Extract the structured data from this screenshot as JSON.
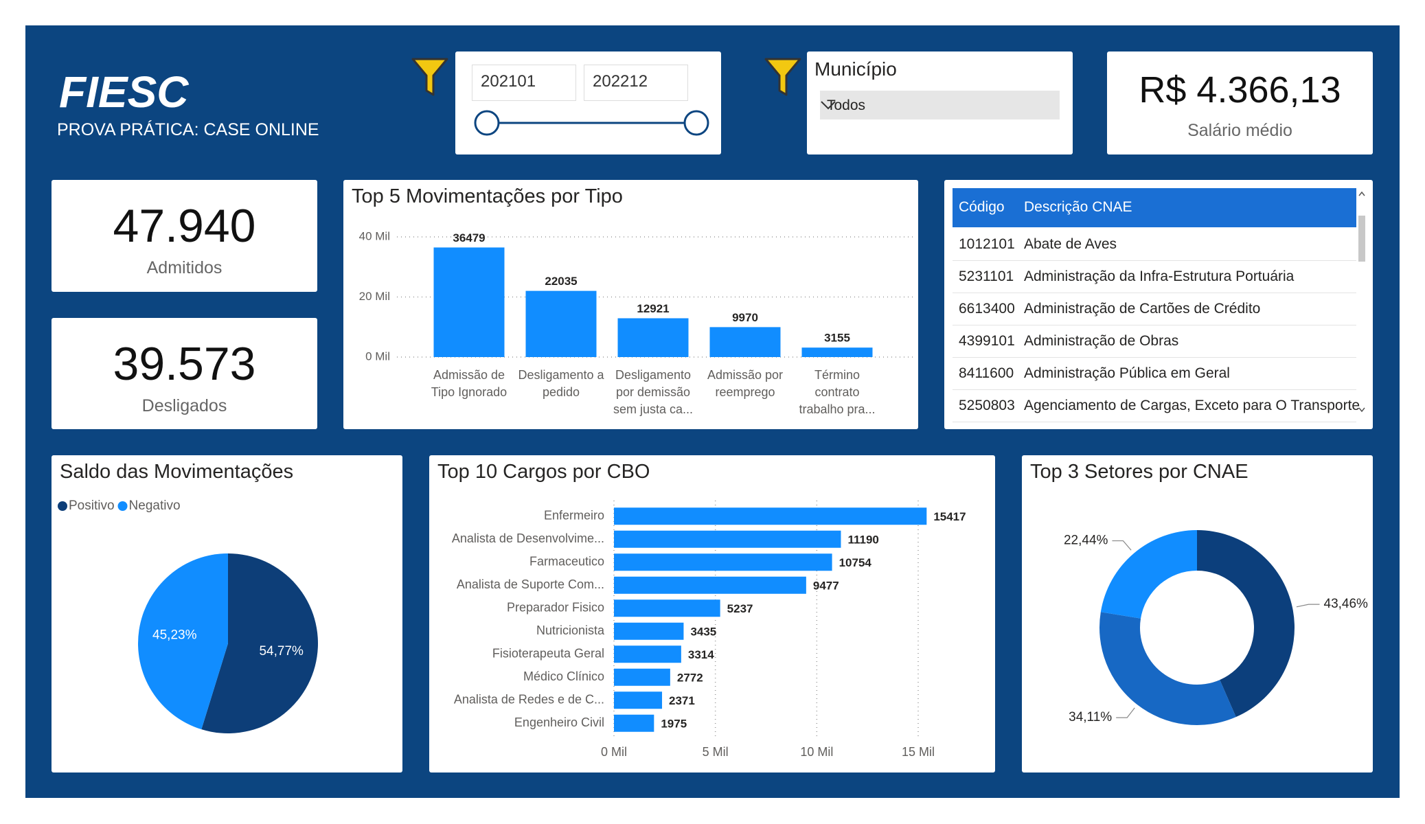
{
  "header": {
    "title": "FIESC",
    "subtitle": "PROVA PRÁTICA: CASE ONLINE"
  },
  "date_filter": {
    "start": "202101",
    "end": "202212"
  },
  "municipio_filter": {
    "label": "Município",
    "value": "Todos"
  },
  "kpis": [
    {
      "value": "R$ 4.366,13",
      "label": "Salário médio"
    },
    {
      "value": "47.940",
      "label": "Admitidos"
    },
    {
      "value": "39.573",
      "label": "Desligados"
    }
  ],
  "table": {
    "columns": [
      "Código",
      "Descrição CNAE"
    ],
    "rows": [
      [
        "1012101",
        "Abate de Aves"
      ],
      [
        "5231101",
        "Administração da Infra-Estrutura Portuária"
      ],
      [
        "6613400",
        "Administração de Cartões de Crédito"
      ],
      [
        "4399101",
        "Administração de Obras"
      ],
      [
        "8411600",
        "Administração Pública em Geral"
      ],
      [
        "5250803",
        "Agenciamento de Cargas, Exceto para O Transporte Marítimo"
      ]
    ]
  },
  "chart_data": [
    {
      "type": "bar",
      "title": "Top 5 Movimentações por Tipo",
      "categories": [
        "Admissão de Tipo Ignorado",
        "Desligamento a pedido",
        "Desligamento por demissão sem justa ca...",
        "Admissão por reemprego",
        "Término contrato trabalho pra..."
      ],
      "values": [
        36479,
        22035,
        12921,
        9970,
        3155
      ],
      "color": "#118dff",
      "ylim": [
        0,
        40000
      ],
      "yticks": [
        {
          "value": 0,
          "label": "0 Mil"
        },
        {
          "value": 20000,
          "label": "20 Mil"
        },
        {
          "value": 40000,
          "label": "40 Mil"
        }
      ],
      "grid": true
    },
    {
      "type": "hbar",
      "title": "Top 10 Cargos por CBO",
      "categories": [
        "Enfermeiro",
        "Analista de Desenvolvime...",
        "Farmaceutico",
        "Analista de Suporte Com...",
        "Preparador Fisico",
        "Nutricionista",
        "Fisioterapeuta Geral",
        "Médico Clínico",
        "Analista de Redes e de C...",
        "Engenheiro Civil"
      ],
      "values": [
        15417,
        11190,
        10754,
        9477,
        5237,
        3435,
        3314,
        2772,
        2371,
        1975
      ],
      "color": "#118dff",
      "xlim": [
        0,
        16000
      ],
      "xticks": [
        {
          "value": 0,
          "label": "0 Mil"
        },
        {
          "value": 5000,
          "label": "5 Mil"
        },
        {
          "value": 10000,
          "label": "10 Mil"
        },
        {
          "value": 15000,
          "label": "15 Mil"
        }
      ],
      "grid": true
    },
    {
      "type": "pie",
      "title": "Saldo das Movimentações",
      "categories": [
        "Positivo",
        "Negativo"
      ],
      "values": [
        54.77,
        45.23
      ],
      "value_labels": [
        "54,77%",
        "45,23%"
      ],
      "colors": [
        "#0d3e78",
        "#118dff"
      ]
    },
    {
      "type": "donut",
      "title": "Top 3 Setores por CNAE",
      "values": [
        43.46,
        34.11,
        22.44
      ],
      "value_labels": [
        "43,46%",
        "34,11%",
        "22,44%"
      ],
      "colors": [
        "#0c3f7c",
        "#1768c4",
        "#118dff"
      ]
    }
  ]
}
